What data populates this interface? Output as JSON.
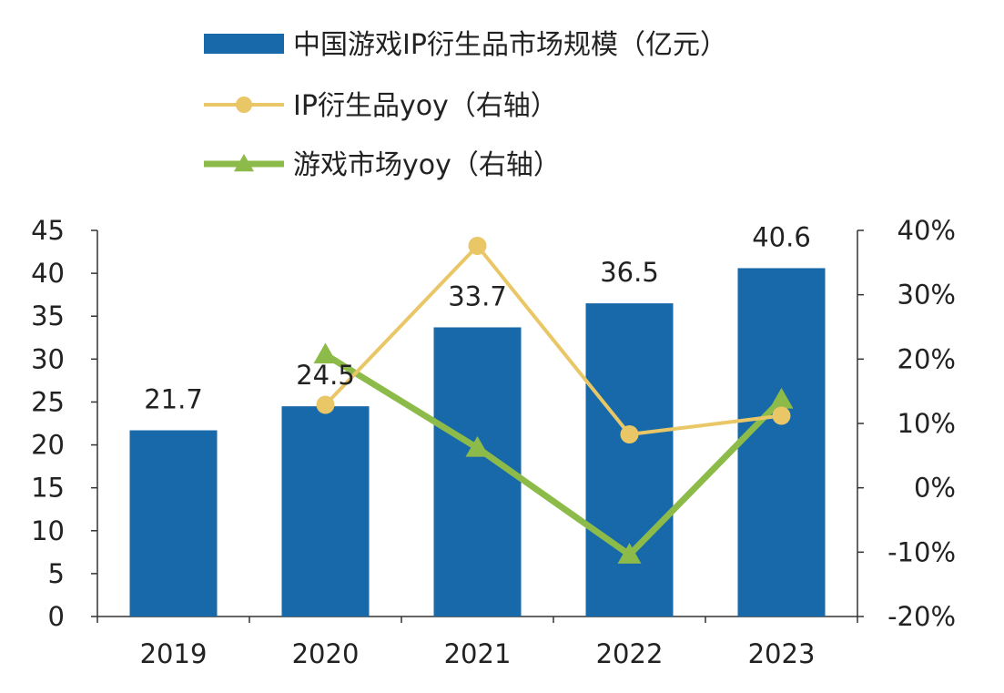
{
  "chart_data": {
    "type": "bar",
    "categories": [
      "2019",
      "2020",
      "2021",
      "2022",
      "2023"
    ],
    "series": [
      {
        "name": "中国游戏IP衍生品市场规模（亿元）",
        "type": "bar",
        "axis": "left",
        "values": [
          21.7,
          24.5,
          33.7,
          36.5,
          40.6
        ],
        "data_labels": [
          "21.7",
          "24.5",
          "33.7",
          "36.5",
          "40.6"
        ],
        "color": "#1769AA"
      },
      {
        "name": "IP衍生品yoy（右轴）",
        "type": "line",
        "axis": "right",
        "marker": "circle",
        "values": [
          null,
          0.129,
          0.376,
          0.083,
          0.112
        ],
        "color": "#E9C767"
      },
      {
        "name": "游戏市场yoy（右轴）",
        "type": "line",
        "axis": "right",
        "marker": "triangle",
        "values": [
          null,
          0.207,
          0.062,
          -0.104,
          0.137
        ],
        "color": "#8DBB4A"
      }
    ],
    "y_left": {
      "min": 0,
      "max": 45,
      "ticks": [
        "0",
        "5",
        "10",
        "15",
        "20",
        "25",
        "30",
        "35",
        "40",
        "45"
      ]
    },
    "y_right": {
      "min": -0.2,
      "max": 0.4,
      "ticks": [
        "-20%",
        "-10%",
        "0%",
        "10%",
        "20%",
        "30%",
        "40%"
      ]
    },
    "legend_position": "top-left",
    "grid": false
  }
}
